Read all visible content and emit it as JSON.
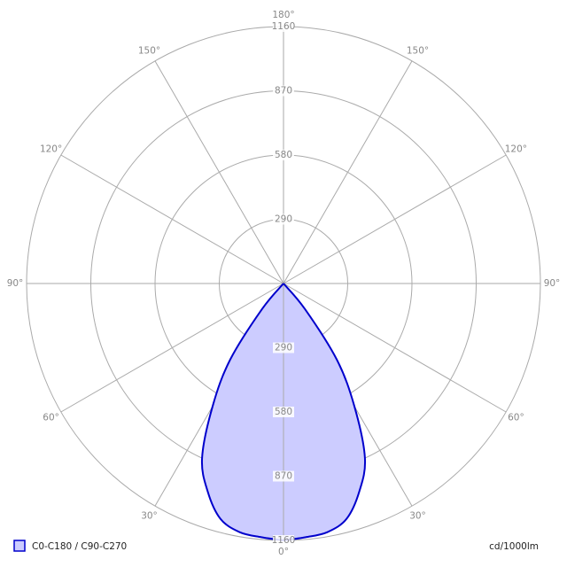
{
  "chart_data": {
    "type": "polar",
    "rlim": [
      0,
      1160
    ],
    "rticks": [
      290,
      580,
      870,
      1160
    ],
    "angle_ticks": [
      {
        "value": 0,
        "label": "0°"
      },
      {
        "value": 30,
        "label": "30°"
      },
      {
        "value": 60,
        "label": "60°"
      },
      {
        "value": 90,
        "label": "90°"
      },
      {
        "value": 120,
        "label": "120°"
      },
      {
        "value": 150,
        "label": "150°"
      },
      {
        "value": 180,
        "label": "180°"
      }
    ],
    "series": [
      {
        "name": "C0-C180 / C90-C270",
        "color": "#0000cc",
        "fill": "#ccccff",
        "angles": [
          0,
          5,
          10,
          15,
          20,
          25,
          30,
          35,
          40,
          45
        ],
        "values": [
          1160,
          1150,
          1140,
          1100,
          1000,
          870,
          640,
          420,
          150,
          0
        ]
      }
    ],
    "unit_label": "cd/1000lm"
  }
}
